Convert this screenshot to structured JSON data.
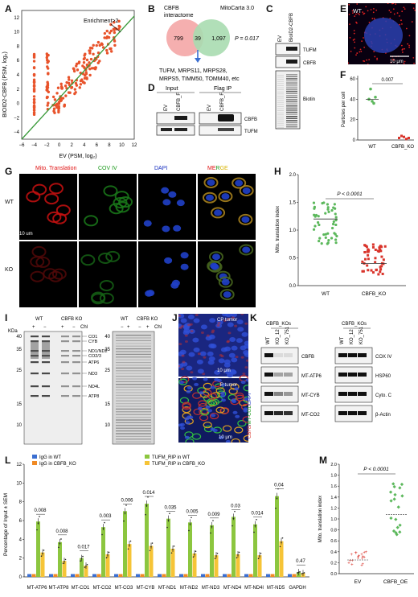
{
  "panels": {
    "A": "A",
    "B": "B",
    "C": "C",
    "D": "D",
    "E": "E",
    "F": "F",
    "G": "G",
    "H": "H",
    "I": "I",
    "J": "J",
    "K": "K",
    "L": "L",
    "M": "M"
  },
  "colors": {
    "scatter": "#e8532b",
    "diagonal": "#3a9a3a",
    "pink": "#f4a6a6",
    "green": "#a8dcb0",
    "wt_green": "#5cb85c",
    "ko_red": "#d9342b",
    "blue": "#3b6fd1",
    "orange": "#f08a24",
    "lime": "#8cc63f",
    "gold": "#f6c437"
  },
  "a": {
    "xlabel": "EV (PSM, log₂)",
    "ylabel": "BIOID2-CBFB (PSM, log₂)",
    "annotation": "Enrichment>2",
    "xticks": [
      "−6",
      "−4",
      "−2",
      "0",
      "2",
      "4",
      "6",
      "8",
      "10",
      "12"
    ],
    "yticks": [
      "−4",
      "−2",
      "0",
      "2",
      "4",
      "6",
      "8",
      "10",
      "12"
    ]
  },
  "b": {
    "left_title": "CBFB\ninteractome",
    "right_title": "MitoCarta 3.0",
    "left_only": "799",
    "overlap": "39",
    "right_only": "1,097",
    "pvalue": "P = 0.017",
    "genes_line1": "TUFM, MRPS11, MRPS28,",
    "genes_line2": "MRPS5, TIMM50, TOMM40, etc"
  },
  "c": {
    "lanes": [
      "EV",
      "BioID2-CBFB"
    ],
    "labels": [
      "TUFM",
      "CBFB",
      "Biotin"
    ]
  },
  "d": {
    "input": "Input",
    "ip": "Flag IP",
    "lanes": [
      "EV",
      "CBFB_F",
      "EV",
      "CBFB_F"
    ],
    "labels": [
      "CBFB",
      "TUFM"
    ]
  },
  "e": {
    "label": "WT",
    "scale": "10 μm"
  },
  "f": {
    "ylabel": "Particles per cell",
    "pvalue": "0.007",
    "categories": [
      "WT",
      "CBFB_KO"
    ],
    "yticks": [
      "0",
      "20",
      "40",
      "60"
    ]
  },
  "g": {
    "columns": [
      "Mito. Translation",
      "COV IV",
      "DAPI",
      "MERGE"
    ],
    "rows": [
      "WT",
      "KO"
    ],
    "scale": "10 um"
  },
  "h": {
    "ylabel": "Mito. translation index",
    "pvalue": "P < 0.0001",
    "categories": [
      "WT",
      "CBFB_KO"
    ],
    "yticks": [
      "0.0",
      "0.5",
      "1.0",
      "1.5",
      "2.0"
    ]
  },
  "i": {
    "kda": "KDa",
    "groups": [
      "WT",
      "CBFB KO"
    ],
    "chl": "Chl",
    "signs": [
      "+",
      "−",
      "+",
      "−"
    ],
    "signs2": [
      "−",
      "+",
      "−",
      "+"
    ],
    "markers": [
      "40",
      "35",
      "25",
      "15",
      "10"
    ],
    "markers2": [
      "40",
      "35",
      "25",
      "15",
      "10"
    ],
    "bands": [
      "CO1",
      "CYB",
      "ND1/ND2",
      "CO2/3",
      "ATP6",
      "ND3",
      "ND4L",
      "ATP8"
    ]
  },
  "j": {
    "top": "CP tumor",
    "bottom": "P tumor",
    "side": "CBFB/MT-CO1/DAPI",
    "scale": "10 μm"
  },
  "k": {
    "group": "CBFB_KOs",
    "lanes": [
      "WT",
      "KO_12",
      "KO_751"
    ],
    "left_labels": [
      "CBFB",
      "MT-ATP6",
      "MT-CYB",
      "MT-CO2"
    ],
    "right_labels": [
      "COX IV",
      "HSP60",
      "Cyto. C",
      "β-Actin"
    ]
  },
  "l": {
    "ylabel": "Percentage of Input ± SEM",
    "legend": [
      "IgG in WT",
      "IgG in CBFB_KO",
      "TUFM_RIP in WT",
      "TUFM_RIP in CBFB_KO"
    ],
    "yticks": [
      "0",
      "2",
      "4",
      "6",
      "8",
      "10",
      "12"
    ]
  },
  "m": {
    "ylabel": "Mito. translation index",
    "pvalue": "P < 0.0001",
    "categories": [
      "EV",
      "CBFB_OE"
    ],
    "yticks": [
      "0.0",
      "0.2",
      "0.4",
      "0.6",
      "0.8",
      "1.0",
      "1.2",
      "1.4",
      "1.6",
      "1.8",
      "2.0"
    ]
  },
  "chart_data": [
    {
      "id": "L",
      "type": "bar",
      "categories": [
        "MT-ATP6",
        "MT-ATP8",
        "MT-CO1",
        "MT-CO2",
        "MT-CO3",
        "MT-CYB",
        "MT-ND1",
        "MT-ND2",
        "MT-ND3",
        "MT-ND4",
        "MT-ND4l",
        "MT-ND5",
        "GAPDH"
      ],
      "series": [
        {
          "name": "IgG in WT",
          "values": [
            0.3,
            0.3,
            0.3,
            0.3,
            0.3,
            0.3,
            0.3,
            0.3,
            0.3,
            0.3,
            0.3,
            0.3,
            0.3
          ]
        },
        {
          "name": "IgG in CBFB_KO",
          "values": [
            0.3,
            0.3,
            0.3,
            0.3,
            0.3,
            0.3,
            0.3,
            0.3,
            0.3,
            0.3,
            0.3,
            0.3,
            0.3
          ]
        },
        {
          "name": "TUFM_RIP in WT",
          "values": [
            5.9,
            3.7,
            2.0,
            5.3,
            7.0,
            7.8,
            6.2,
            5.8,
            5.5,
            6.4,
            5.6,
            8.6,
            0.5
          ]
        },
        {
          "name": "TUFM_RIP in CBFB_KO",
          "values": [
            2.6,
            1.7,
            1.2,
            2.4,
            3.5,
            3.3,
            3.0,
            2.5,
            2.3,
            2.4,
            2.3,
            3.8,
            0.4
          ]
        }
      ],
      "pvalues": [
        "0.008",
        "0.008",
        "0.017",
        "0.003",
        "0.006",
        "0.014",
        "0.035",
        "0.005",
        "0.009",
        "0.03",
        "0.014",
        "0.04",
        "0.47"
      ],
      "ylabel": "Percentage of Input ± SEM",
      "ylim": [
        0,
        12
      ]
    },
    {
      "id": "F",
      "type": "scatter",
      "categories": [
        "WT",
        "CBFB_KO"
      ],
      "values": [
        [
          40,
          50,
          38,
          36,
          42
        ],
        [
          2,
          4,
          3,
          1,
          2
        ]
      ],
      "ylabel": "Particles per cell",
      "ylim": [
        0,
        60
      ]
    },
    {
      "id": "M",
      "type": "scatter",
      "categories": [
        "EV",
        "CBFB_OE"
      ],
      "ylabel": "Mito. translation index",
      "ylim": [
        0,
        2.0
      ]
    }
  ]
}
